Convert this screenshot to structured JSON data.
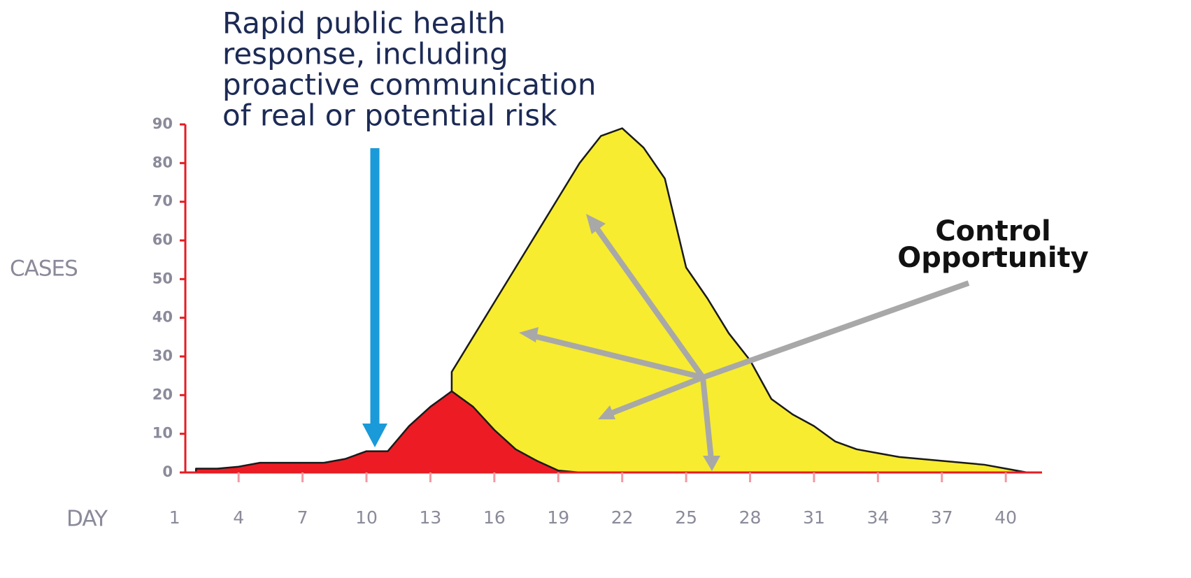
{
  "chart_data": {
    "type": "area",
    "y_label": "CASES",
    "x_label": "DAY",
    "annotation_response": [
      "Rapid public health",
      "response, including",
      "proactive communication",
      "of real or potential risk"
    ],
    "annotation_control": [
      "Control",
      "Opportunity"
    ],
    "x": [
      2,
      3,
      4,
      5,
      6,
      7,
      8,
      9,
      10,
      11,
      12,
      13,
      14,
      15,
      16,
      17,
      18,
      19,
      20,
      21,
      22,
      23,
      24,
      25,
      26,
      27,
      28,
      29,
      30,
      31,
      32,
      33,
      34,
      35,
      36,
      37,
      38,
      39,
      40,
      41
    ],
    "series": [
      {
        "color": "#f7ec30",
        "values": [
          null,
          null,
          null,
          null,
          null,
          null,
          null,
          null,
          null,
          null,
          null,
          null,
          26,
          35,
          44,
          53,
          62,
          71,
          80,
          87,
          89,
          84,
          76,
          53,
          45,
          36,
          29,
          19,
          15,
          12,
          8,
          6,
          5,
          4,
          3.5,
          3,
          2.5,
          2,
          1,
          0
        ]
      },
      {
        "color": "#ed1c24",
        "values": [
          1,
          1,
          1.5,
          2.5,
          2.5,
          2.5,
          2.5,
          3.5,
          5.5,
          5.5,
          12,
          17,
          21,
          17,
          11,
          6,
          3,
          0.5,
          0,
          0,
          0,
          0,
          0,
          0,
          0,
          0,
          0,
          0,
          0,
          0,
          0,
          0,
          0,
          0,
          0,
          0,
          0,
          0,
          0,
          0
        ]
      }
    ],
    "xlim": [
      1.5,
      41.7
    ],
    "xticks": [
      1,
      4,
      7,
      10,
      13,
      16,
      19,
      22,
      25,
      28,
      31,
      34,
      37,
      40
    ],
    "ylim": [
      0,
      90
    ],
    "yticks": [
      0,
      10,
      20,
      30,
      40,
      50,
      60,
      70,
      80,
      90
    ],
    "axis_color": "#e31e24"
  }
}
